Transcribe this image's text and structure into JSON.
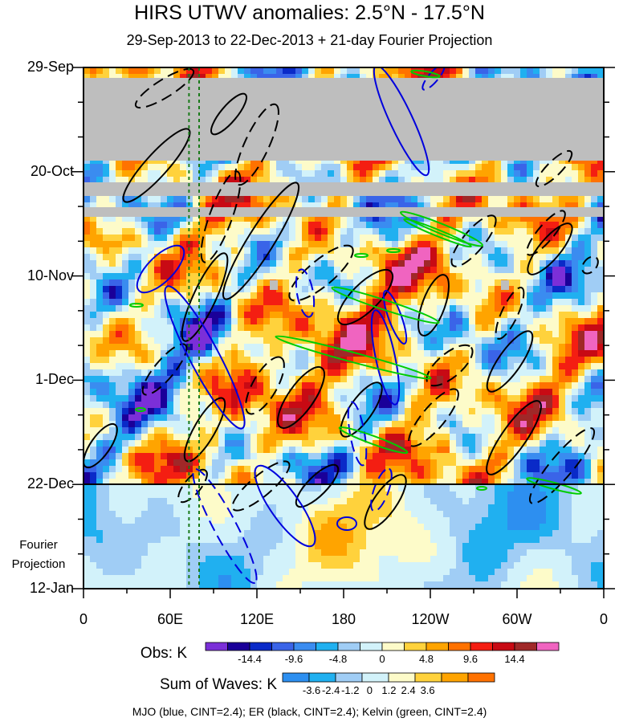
{
  "chart_data": {
    "type": "heatmap",
    "title": "HIRS UTWV anomalies: 2.5°N - 17.5°N",
    "subtitle": "29-Sep-2013 to 22-Dec-2013 + 21-day Fourier Projection",
    "x_axis": {
      "tick_labels": [
        "0",
        "60E",
        "120E",
        "180",
        "120W",
        "60W",
        "0"
      ],
      "range_deg_east": [
        0,
        360
      ]
    },
    "y_axis": {
      "tick_labels": [
        "29-Sep",
        "20-Oct",
        "10-Nov",
        "1-Dec",
        "22-Dec",
        "12-Jan"
      ],
      "range": [
        "2013-09-29",
        "2014-01-12"
      ],
      "projection_start": "2013-12-22",
      "projection_label_line1": "Fourier",
      "projection_label_line2": "Projection"
    },
    "reference_lines_deg_east": [
      73,
      80
    ],
    "obs_colorbar": {
      "title": "Obs: K",
      "tick_labels": [
        "-14.4",
        "-9.6",
        "-4.8",
        "0",
        "4.8",
        "9.6",
        "14.4"
      ],
      "colors": [
        "#7b2fd8",
        "#1a0099",
        "#0a2ac8",
        "#3a64e8",
        "#3a8cf0",
        "#20b0f0",
        "#a0cdf5",
        "#d2f2fa",
        "#fdfbc9",
        "#ffd23c",
        "#ffa400",
        "#ff7200",
        "#f41e12",
        "#c80a14",
        "#a02828",
        "#f064c0"
      ]
    },
    "waves_colorbar": {
      "title": "Sum of Waves: K",
      "tick_labels": [
        "-3.6",
        "-2.4",
        "-1.2",
        "0",
        "1.2",
        "2.4",
        "3.6"
      ],
      "colors": [
        "#2d8ff0",
        "#20b0f0",
        "#a0cdf5",
        "#d2f2fa",
        "#fdfbc9",
        "#ffd23c",
        "#ffa400",
        "#ff7200"
      ]
    },
    "contours": [
      {
        "name": "MJO",
        "color": "#0000dd"
      },
      {
        "name": "ER",
        "color": "#000000"
      },
      {
        "name": "Kelvin",
        "color": "#00cc00"
      }
    ],
    "legend_text": "MJO (blue, CINT=2.4); ER (black, CINT=2.4); Kelvin (green, CINT=2.4)"
  }
}
